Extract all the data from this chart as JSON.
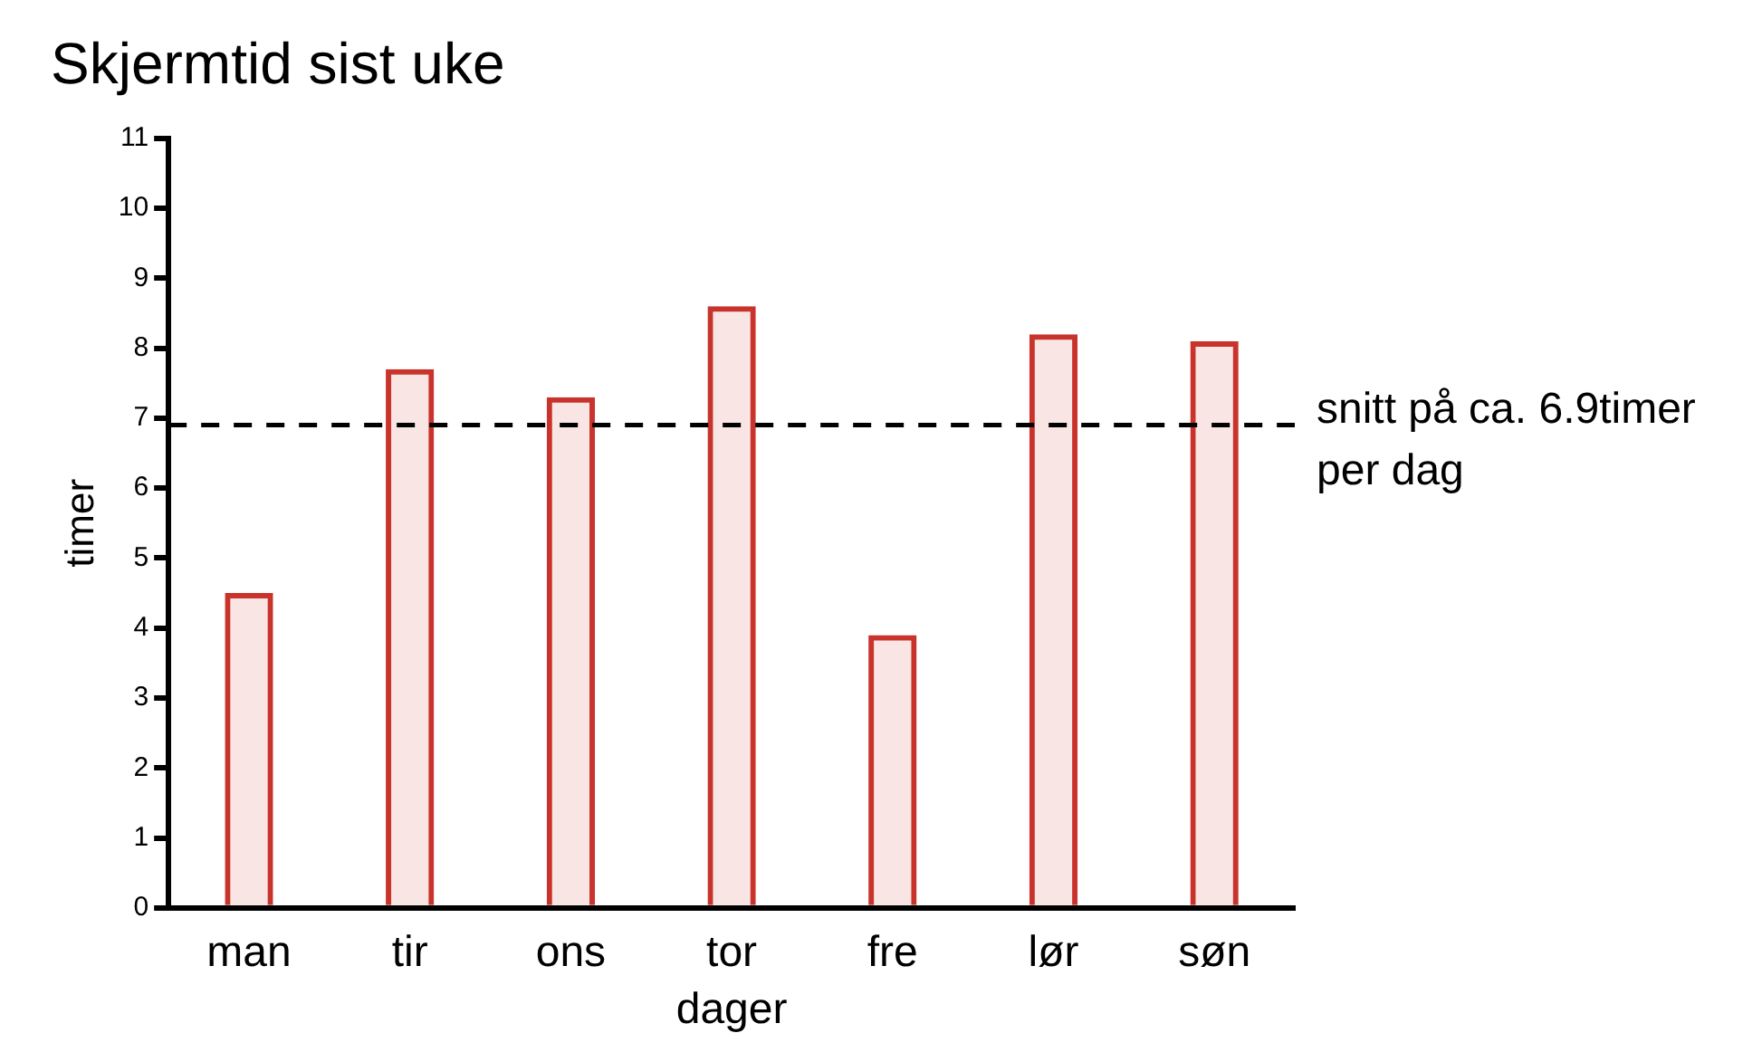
{
  "chart_data": {
    "type": "bar",
    "title": "Skjermtid sist uke",
    "xlabel": "dager",
    "ylabel": "timer",
    "categories": [
      "man",
      "tir",
      "ons",
      "tor",
      "fre",
      "lør",
      "søn"
    ],
    "values": [
      4.5,
      7.7,
      7.3,
      8.6,
      3.9,
      8.2,
      8.1
    ],
    "color": "#c8332b",
    "ylim": [
      0,
      11
    ],
    "yticks": [
      0,
      1,
      2,
      3,
      4,
      5,
      6,
      7,
      8,
      9,
      10,
      11
    ],
    "ref_lines": [
      {
        "axis": "y",
        "value": 6.9,
        "label": "snitt på ca. 6.9timer per dag",
        "color": "#000000",
        "line_style": "dashed"
      }
    ]
  }
}
